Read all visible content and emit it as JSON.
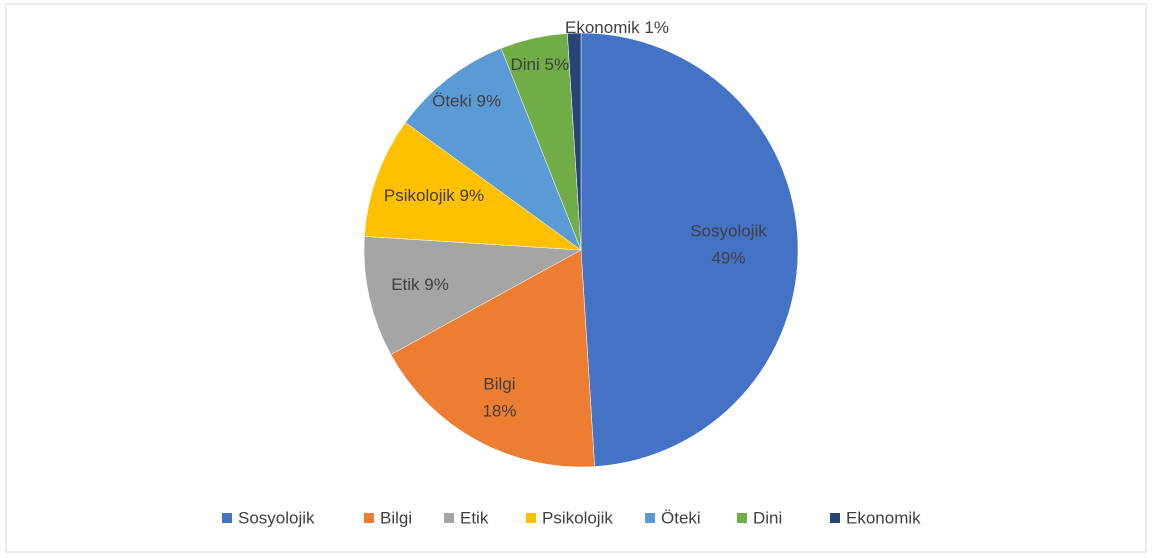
{
  "chart_data": {
    "type": "pie",
    "categories": [
      "Sosyolojik",
      "Bilgi",
      "Etik",
      "Psikolojik",
      "Öteki",
      "Dini",
      "Ekonomik"
    ],
    "values": [
      49,
      18,
      9,
      9,
      9,
      5,
      1
    ],
    "value_labels": [
      "49%",
      "18%",
      "9%",
      "9%",
      "9%",
      "5%",
      "1%"
    ],
    "colors": [
      "#4472c4",
      "#ed7d31",
      "#a5a5a5",
      "#ffc000",
      "#5b9bd5",
      "#70ad47",
      "#264478"
    ],
    "legend": "bottom"
  }
}
